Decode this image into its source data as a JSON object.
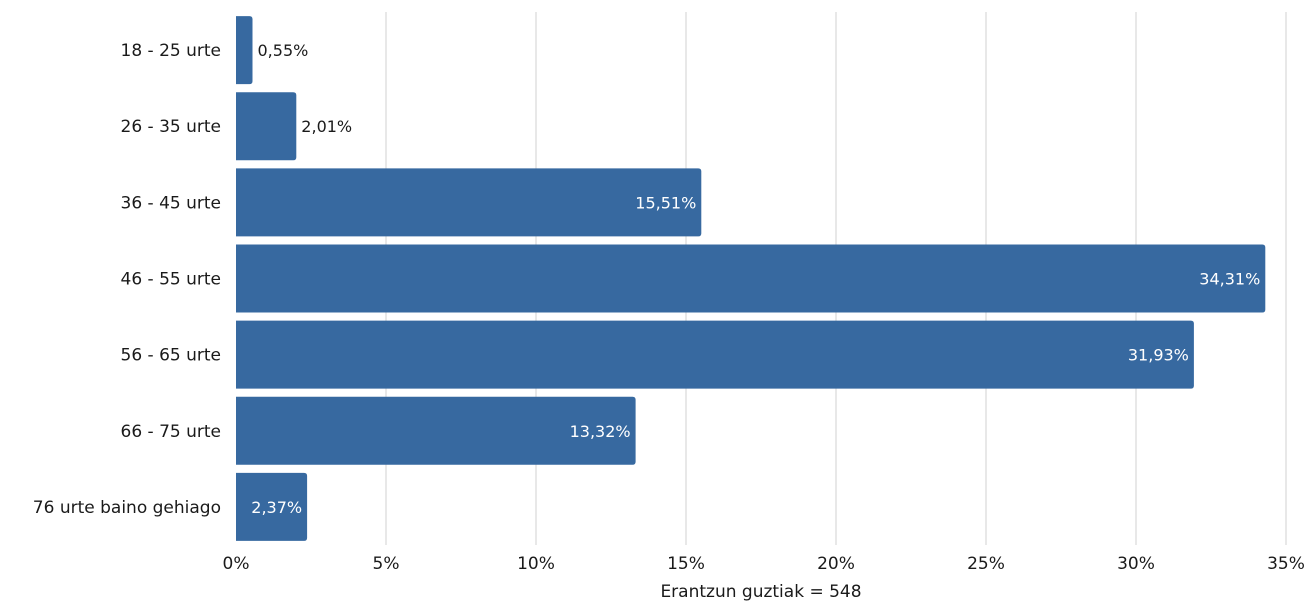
{
  "chart_data": {
    "type": "bar",
    "orientation": "horizontal",
    "categories": [
      "18 - 25 urte",
      "26 - 35 urte",
      "36 - 45 urte",
      "46 - 55 urte",
      "56 - 65 urte",
      "66 - 75 urte",
      "76 urte baino gehiago"
    ],
    "values": [
      0.55,
      2.01,
      15.51,
      34.31,
      31.93,
      13.32,
      2.37
    ],
    "value_labels": [
      "0,55%",
      "2,01%",
      "15,51%",
      "34,31%",
      "31,93%",
      "13,32%",
      "2,37%"
    ],
    "xticks": [
      0,
      5,
      10,
      15,
      20,
      25,
      30,
      35
    ],
    "xtick_labels": [
      "0%",
      "5%",
      "10%",
      "15%",
      "20%",
      "25%",
      "30%",
      "35%"
    ],
    "xlim": [
      0,
      35
    ],
    "xlabel": "Erantzun guztiak = 548",
    "grid": "vertical",
    "legend": "none",
    "colors": {
      "bar": "#3769a0",
      "grid": "#d0d0d0",
      "label_inside": "#ffffff",
      "label_outside": "#1a1a1a"
    }
  }
}
